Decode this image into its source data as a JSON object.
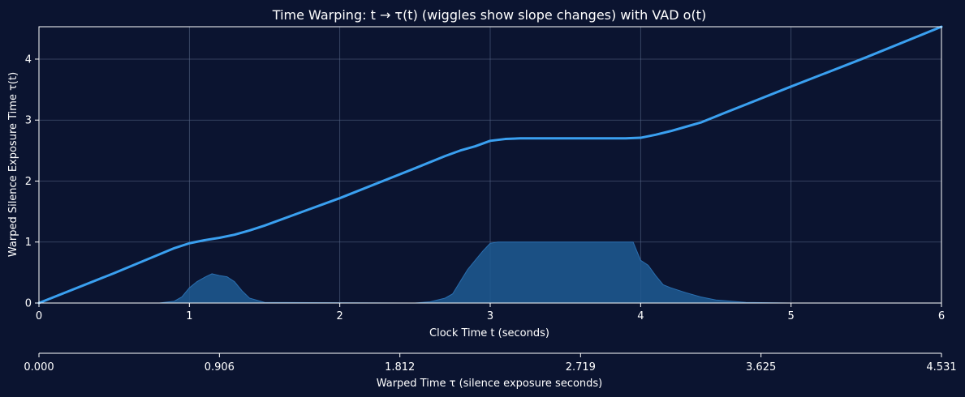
{
  "colors": {
    "background": "#0b1430",
    "plot_bg": "#0b1430",
    "line": "#3aa0f0",
    "fill": "#1f5a93",
    "grid": "#5a6a8a",
    "text": "#ffffff"
  },
  "chart_data": {
    "type": "line",
    "title": "Time Warping: t → τ(t) (wiggles show slope changes) with VAD o(t)",
    "xlabel": "Clock Time t (seconds)",
    "ylabel": "Warped Silence Exposure Time τ(t)",
    "xlim": [
      0,
      6
    ],
    "ylim": [
      0,
      4.531
    ],
    "xticks": [
      "0",
      "1",
      "2",
      "3",
      "4",
      "5",
      "6"
    ],
    "yticks": [
      "0",
      "1",
      "2",
      "3",
      "4"
    ],
    "grid": true,
    "secondary_axis": {
      "label": "Warped Time τ (silence exposure seconds)",
      "ticks": [
        {
          "t": 0.0,
          "label": "0.000"
        },
        {
          "t": 0.906,
          "label": "0.906"
        },
        {
          "t": 1.812,
          "label": "1.812"
        },
        {
          "t": 2.719,
          "label": "2.719"
        },
        {
          "t": 3.625,
          "label": "3.625"
        },
        {
          "t": 4.531,
          "label": "4.531"
        }
      ]
    },
    "series": [
      {
        "kind": "line",
        "x": [
          0,
          0.5,
          0.9,
          1.0,
          1.1,
          1.2,
          1.3,
          1.4,
          1.5,
          2.0,
          2.5,
          2.7,
          2.8,
          2.9,
          3.0,
          3.1,
          3.2,
          3.5,
          3.8,
          3.9,
          4.0,
          4.1,
          4.2,
          4.3,
          4.4,
          4.5,
          5.0,
          5.5,
          6.0
        ],
        "y": [
          0,
          0.49,
          0.9,
          0.98,
          1.03,
          1.07,
          1.12,
          1.19,
          1.27,
          1.72,
          2.21,
          2.41,
          2.5,
          2.57,
          2.66,
          2.69,
          2.7,
          2.7,
          2.7,
          2.7,
          2.71,
          2.76,
          2.82,
          2.89,
          2.96,
          3.06,
          3.55,
          4.03,
          4.531
        ]
      },
      {
        "kind": "area",
        "x": [
          0,
          0.8,
          0.9,
          0.95,
          1.0,
          1.05,
          1.1,
          1.15,
          1.2,
          1.25,
          1.3,
          1.35,
          1.4,
          1.5,
          2.5,
          2.6,
          2.7,
          2.75,
          2.8,
          2.85,
          2.9,
          2.95,
          3.0,
          3.05,
          3.1,
          3.5,
          3.8,
          3.95,
          4.0,
          4.05,
          4.1,
          4.15,
          4.2,
          4.3,
          4.4,
          4.5,
          4.7,
          5.0,
          6.0
        ],
        "y": [
          0,
          0.0,
          0.03,
          0.1,
          0.25,
          0.35,
          0.42,
          0.48,
          0.45,
          0.43,
          0.35,
          0.2,
          0.08,
          0.01,
          0.0,
          0.02,
          0.08,
          0.15,
          0.35,
          0.55,
          0.7,
          0.85,
          0.98,
          1.0,
          1.0,
          1.0,
          1.0,
          1.0,
          0.7,
          0.62,
          0.45,
          0.3,
          0.25,
          0.17,
          0.1,
          0.05,
          0.01,
          0.0,
          0.0
        ]
      }
    ]
  }
}
